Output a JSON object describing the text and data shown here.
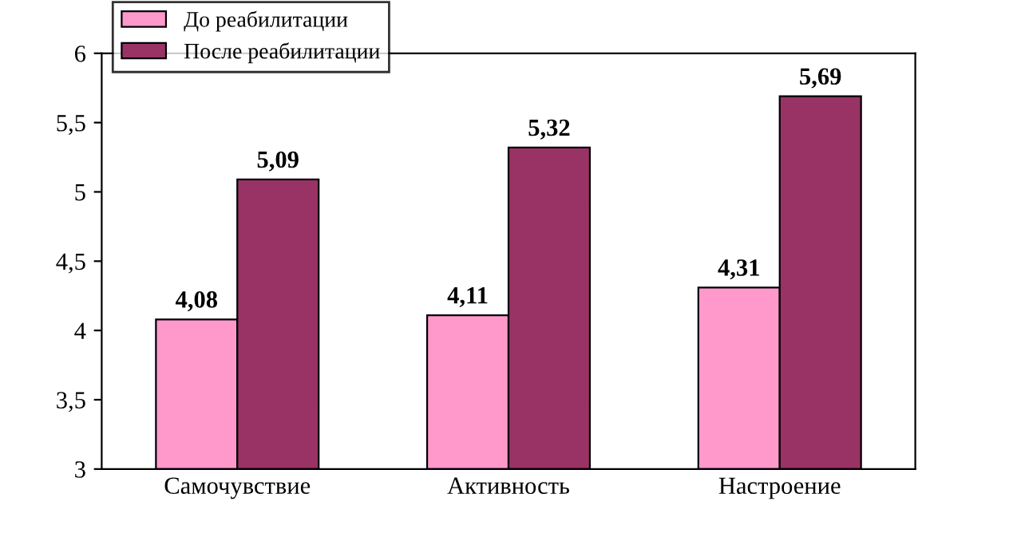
{
  "chart_data": {
    "type": "bar",
    "categories": [
      "Самочувствие",
      "Активность",
      "Настроение"
    ],
    "series": [
      {
        "name": "До реабилитации",
        "color": "#ff99cc",
        "values": [
          4.08,
          4.11,
          4.31
        ],
        "value_labels": [
          "4,08",
          "4,11",
          "4,31"
        ]
      },
      {
        "name": "После реабилитации",
        "color": "#993366",
        "values": [
          5.09,
          5.32,
          5.69
        ],
        "value_labels": [
          "5,09",
          "5,32",
          "5,69"
        ]
      }
    ],
    "ylim": [
      3,
      6
    ],
    "yticks": [
      3,
      {
        "value": 3.5,
        "label": "3,5"
      },
      4,
      {
        "value": 4.5,
        "label": "4,5"
      },
      5,
      {
        "value": 5.5,
        "label": "5,5"
      },
      6
    ],
    "grid": false,
    "legend": "top left"
  }
}
